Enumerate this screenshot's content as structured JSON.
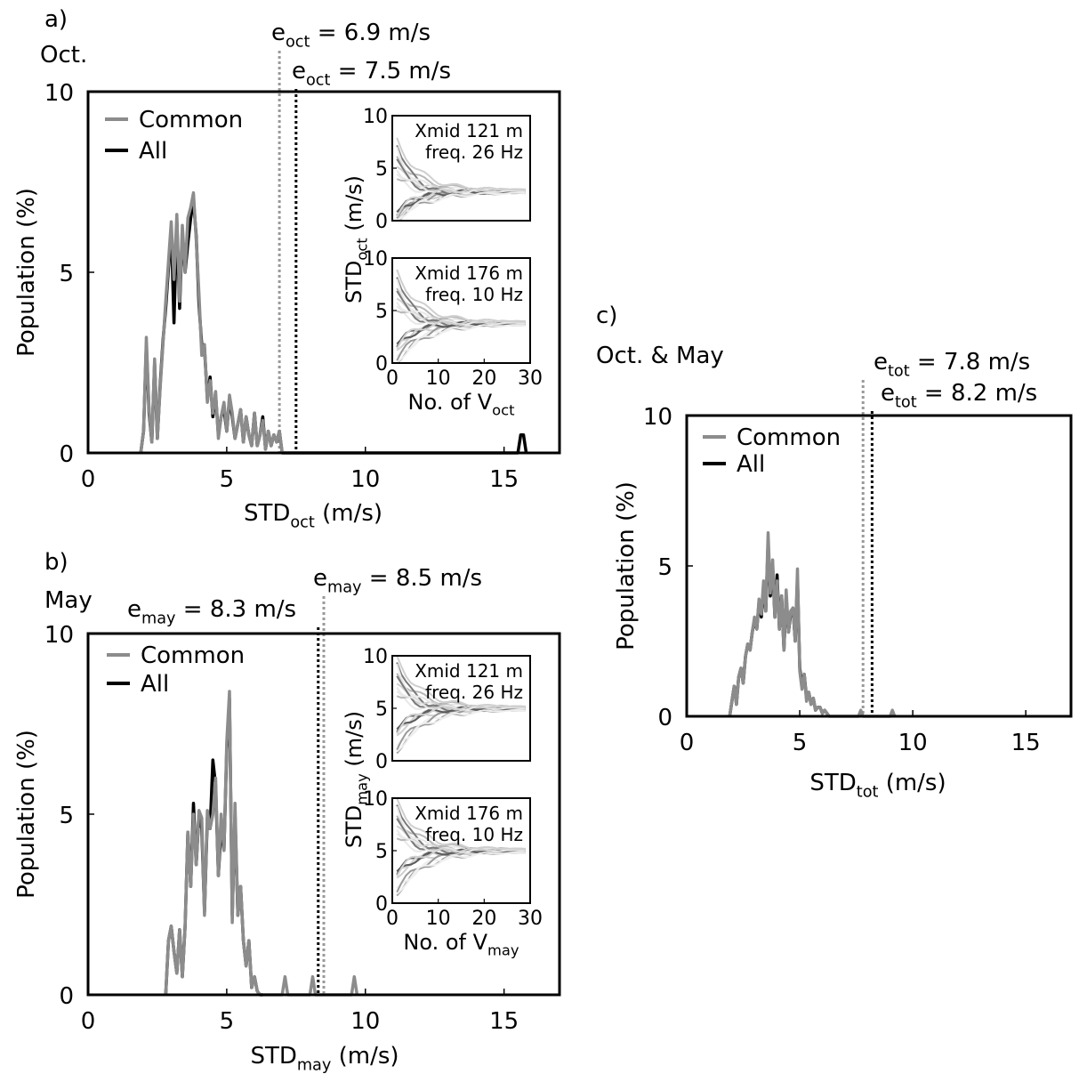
{
  "chart_data": [
    {
      "panel": "a)",
      "subtitle": "Oct.",
      "type": "line",
      "xlabel": "STD",
      "xlabel_sub": "oct",
      "xlabel_unit": " (m/s)",
      "ylabel": "Population (%)",
      "xlim": [
        0,
        17
      ],
      "ylim": [
        0,
        10
      ],
      "xticks": [
        "0",
        "5",
        "10",
        "15"
      ],
      "yticks": [
        "0",
        "5",
        "10"
      ],
      "legend": [
        "Common",
        "All"
      ],
      "refs": [
        {
          "label": "e",
          "sub": "oct",
          "text": " = 6.9 m/s",
          "x": 6.9,
          "color": "#999999"
        },
        {
          "label": "e",
          "sub": "oct",
          "text": " = 7.5 m/s",
          "x": 7.5,
          "color": "#000000"
        }
      ],
      "series": [
        {
          "name": "Common",
          "color": "#8c8c8c",
          "x": [
            1.9,
            2.0,
            2.1,
            2.2,
            2.3,
            2.4,
            2.5,
            2.6,
            2.7,
            2.8,
            2.9,
            3.0,
            3.1,
            3.2,
            3.3,
            3.4,
            3.5,
            3.6,
            3.7,
            3.8,
            3.9,
            4.0,
            4.1,
            4.2,
            4.3,
            4.4,
            4.5,
            4.6,
            4.7,
            4.8,
            4.9,
            5.0,
            5.1,
            5.2,
            5.3,
            5.4,
            5.5,
            5.6,
            5.7,
            5.8,
            5.9,
            6.0,
            6.1,
            6.2,
            6.3,
            6.4,
            6.5,
            6.6,
            6.7,
            6.8,
            6.9,
            7.0
          ],
          "y": [
            0,
            0.6,
            3.2,
            1.2,
            0.3,
            2.6,
            0.4,
            1.8,
            3.0,
            4.2,
            5.3,
            6.4,
            4.8,
            6.6,
            4.2,
            6.3,
            5.0,
            6.5,
            6.8,
            7.2,
            5.9,
            4.4,
            2.7,
            3.0,
            1.4,
            2.0,
            1.1,
            1.7,
            0.4,
            1.0,
            1.4,
            0.6,
            1.6,
            1.1,
            0.4,
            0.8,
            1.2,
            0.3,
            1.0,
            0.5,
            0.2,
            1.1,
            0.2,
            0.5,
            0.9,
            0.1,
            0.6,
            0.2,
            0.5,
            0.3,
            0.6,
            0
          ]
        },
        {
          "name": "All",
          "color": "#000000",
          "x": [
            1.9,
            2.0,
            2.1,
            2.2,
            2.3,
            2.4,
            2.5,
            2.6,
            2.7,
            2.8,
            2.9,
            3.0,
            3.1,
            3.2,
            3.3,
            3.4,
            3.5,
            3.6,
            3.7,
            3.8,
            3.9,
            4.0,
            4.1,
            4.2,
            4.3,
            4.4,
            4.5,
            4.6,
            4.7,
            4.8,
            4.9,
            5.0,
            5.1,
            5.2,
            5.3,
            5.4,
            5.5,
            5.6,
            5.7,
            5.8,
            5.9,
            6.0,
            6.1,
            6.2,
            6.3,
            6.4,
            6.5,
            6.6,
            6.7,
            6.8,
            6.9,
            7.0,
            15.5,
            15.6,
            15.7,
            15.8
          ],
          "y": [
            0,
            0.6,
            3.0,
            1.1,
            0.3,
            2.5,
            0.4,
            1.9,
            3.1,
            4.0,
            5.1,
            6.2,
            3.6,
            6.4,
            4.0,
            6.1,
            5.0,
            5.8,
            6.5,
            7.0,
            6.0,
            4.1,
            3.0,
            2.9,
            1.5,
            2.1,
            1.0,
            1.6,
            0.5,
            1.0,
            1.2,
            0.6,
            1.5,
            1.0,
            0.4,
            0.8,
            1.2,
            0.3,
            1.0,
            0.5,
            0.2,
            1.1,
            0.2,
            0.5,
            1.0,
            0.1,
            0.6,
            0.2,
            0.5,
            0.3,
            0.6,
            0,
            0,
            0.5,
            0.5,
            0
          ]
        }
      ],
      "inset_top": {
        "text1": "Xmid 121 m",
        "text2": "freq. 26 Hz"
      },
      "inset_bottom": {
        "text1": "Xmid 176 m",
        "text2": "freq. 10 Hz"
      },
      "inset_ylabel": "STD",
      "inset_ylabel_sub": "oct",
      "inset_ylabel_unit": " (m/s)",
      "inset_xlabel": "No. of V",
      "inset_xlabel_sub": "oct",
      "inset_xticks": [
        "0",
        "10",
        "20",
        "30"
      ],
      "inset_yticks": [
        "0",
        "5",
        "10"
      ],
      "inset_top_converge": 2.8,
      "inset_bottom_converge": 3.8
    },
    {
      "panel": "b)",
      "subtitle": "May",
      "type": "line",
      "xlabel": "STD",
      "xlabel_sub": "may",
      "xlabel_unit": " (m/s)",
      "ylabel": "Population (%)",
      "xlim": [
        0,
        17
      ],
      "ylim": [
        0,
        10
      ],
      "xticks": [
        "0",
        "5",
        "10",
        "15"
      ],
      "yticks": [
        "0",
        "5",
        "10"
      ],
      "legend": [
        "Common",
        "All"
      ],
      "refs": [
        {
          "label": "e",
          "sub": "may",
          "text": " = 8.3 m/s",
          "x": 8.3,
          "color": "#000000"
        },
        {
          "label": "e",
          "sub": "may",
          "text": " = 8.5 m/s",
          "x": 8.5,
          "color": "#999999"
        }
      ],
      "series": [
        {
          "name": "Common",
          "color": "#8c8c8c",
          "x": [
            2.8,
            2.9,
            3.0,
            3.1,
            3.2,
            3.3,
            3.4,
            3.5,
            3.6,
            3.7,
            3.8,
            3.9,
            4.0,
            4.1,
            4.2,
            4.3,
            4.4,
            4.5,
            4.6,
            4.7,
            4.8,
            4.9,
            5.0,
            5.1,
            5.2,
            5.3,
            5.4,
            5.5,
            5.6,
            5.7,
            5.8,
            5.9,
            6.0,
            6.1,
            6.2,
            6.3,
            7.0,
            7.1,
            7.2,
            8.0,
            8.1,
            8.2,
            9.5,
            9.6,
            9.7
          ],
          "y": [
            0,
            1.5,
            1.9,
            1.2,
            0.6,
            1.8,
            0.5,
            1.9,
            4.5,
            3.0,
            5.0,
            3.6,
            5.1,
            4.9,
            2.2,
            5.1,
            4.6,
            5.0,
            6.0,
            3.3,
            5.0,
            4.0,
            7.0,
            8.4,
            2.0,
            5.3,
            2.2,
            3.0,
            1.5,
            0.8,
            1.5,
            0.2,
            0.5,
            0.1,
            0,
            0,
            0,
            0.5,
            0,
            0,
            0.5,
            0,
            0,
            0.5,
            0
          ]
        },
        {
          "name": "All",
          "color": "#000000",
          "x": [
            2.8,
            2.9,
            3.0,
            3.1,
            3.2,
            3.3,
            3.4,
            3.5,
            3.6,
            3.7,
            3.8,
            3.9,
            4.0,
            4.1,
            4.2,
            4.3,
            4.4,
            4.5,
            4.6,
            4.7,
            4.8,
            4.9,
            5.0,
            5.1,
            5.2,
            5.3,
            5.4,
            5.5,
            5.6,
            5.7,
            5.8,
            5.9,
            6.0,
            6.1,
            6.2,
            6.3
          ],
          "y": [
            0,
            1.5,
            1.9,
            1.2,
            0.6,
            1.8,
            0.5,
            1.9,
            4.5,
            3.0,
            5.3,
            3.6,
            5.0,
            4.6,
            2.3,
            4.9,
            4.6,
            6.5,
            5.8,
            3.3,
            4.6,
            4.0,
            6.8,
            8.2,
            2.2,
            5.0,
            2.2,
            3.0,
            1.5,
            0.8,
            1.5,
            0.2,
            0.5,
            0.1,
            0,
            0
          ]
        }
      ],
      "inset_top": {
        "text1": "Xmid 121 m",
        "text2": "freq. 26 Hz"
      },
      "inset_bottom": {
        "text1": "Xmid 176 m",
        "text2": "freq. 10 Hz"
      },
      "inset_ylabel": "STD",
      "inset_ylabel_sub": "may",
      "inset_ylabel_unit": " (m/s)",
      "inset_xlabel": "No. of V",
      "inset_xlabel_sub": "may",
      "inset_xticks": [
        "0",
        "10",
        "20",
        "30"
      ],
      "inset_yticks": [
        "0",
        "5",
        "10"
      ],
      "inset_top_converge": 5.0,
      "inset_bottom_converge": 5.0
    },
    {
      "panel": "c)",
      "subtitle": "Oct. & May",
      "type": "line",
      "xlabel": "STD",
      "xlabel_sub": "tot",
      "xlabel_unit": " (m/s)",
      "ylabel": "Population (%)",
      "xlim": [
        0,
        17
      ],
      "ylim": [
        0,
        10
      ],
      "xticks": [
        "0",
        "5",
        "10",
        "15"
      ],
      "yticks": [
        "0",
        "5",
        "10"
      ],
      "legend": [
        "Common",
        "All"
      ],
      "refs": [
        {
          "label": "e",
          "sub": "tot",
          "text": " = 7.8 m/s",
          "x": 7.8,
          "color": "#999999"
        },
        {
          "label": "e",
          "sub": "tot",
          "text": " = 8.2 m/s",
          "x": 8.2,
          "color": "#000000"
        }
      ],
      "series": [
        {
          "name": "Common",
          "color": "#8c8c8c",
          "x": [
            1.9,
            2.0,
            2.1,
            2.2,
            2.3,
            2.4,
            2.5,
            2.6,
            2.7,
            2.8,
            2.9,
            3.0,
            3.1,
            3.2,
            3.3,
            3.4,
            3.5,
            3.6,
            3.7,
            3.8,
            3.9,
            4.0,
            4.1,
            4.2,
            4.3,
            4.4,
            4.5,
            4.6,
            4.7,
            4.8,
            4.9,
            5.0,
            5.1,
            5.2,
            5.3,
            5.4,
            5.5,
            5.6,
            5.7,
            5.8,
            5.9,
            6.0,
            6.1,
            6.2,
            6.3,
            7.6,
            7.7,
            7.8,
            9.0,
            9.1,
            9.2
          ],
          "y": [
            0,
            0.5,
            1.0,
            0.4,
            1.3,
            1.6,
            1.1,
            2.0,
            2.4,
            2.2,
            2.8,
            3.3,
            2.9,
            3.9,
            3.4,
            4.5,
            3.5,
            6.1,
            4.1,
            5.2,
            3.3,
            4.5,
            2.9,
            4.0,
            2.2,
            4.2,
            2.8,
            3.5,
            3.6,
            2.5,
            4.9,
            1.5,
            0.9,
            1.4,
            0.5,
            0.8,
            0.4,
            0.6,
            0.2,
            0.3,
            0.3,
            0.1,
            0.2,
            0.1,
            0,
            0,
            0.2,
            0,
            0,
            0.2,
            0
          ]
        },
        {
          "name": "All",
          "color": "#000000",
          "x": [
            1.9,
            2.0,
            2.1,
            2.2,
            2.3,
            2.4,
            2.5,
            2.6,
            2.7,
            2.8,
            2.9,
            3.0,
            3.1,
            3.2,
            3.3,
            3.4,
            3.5,
            3.6,
            3.7,
            3.8,
            3.9,
            4.0,
            4.1,
            4.2,
            4.3,
            4.4,
            4.5,
            4.6,
            4.7,
            4.8,
            4.9,
            5.0,
            5.1,
            5.2,
            5.3,
            5.4,
            5.5,
            5.6,
            5.7,
            5.8,
            5.9,
            6.0,
            6.1,
            6.2,
            6.3
          ],
          "y": [
            0,
            0.5,
            1.0,
            0.4,
            1.3,
            1.6,
            1.1,
            2.0,
            2.4,
            2.2,
            2.8,
            3.2,
            2.9,
            3.8,
            3.3,
            4.3,
            3.5,
            5.8,
            4.0,
            5.0,
            3.3,
            4.7,
            2.9,
            4.0,
            2.2,
            4.0,
            2.8,
            3.4,
            3.6,
            2.5,
            4.6,
            1.6,
            1.0,
            1.4,
            0.6,
            0.8,
            0.4,
            0.6,
            0.2,
            0.3,
            0.3,
            0.1,
            0.2,
            0.1,
            0
          ]
        }
      ]
    }
  ]
}
